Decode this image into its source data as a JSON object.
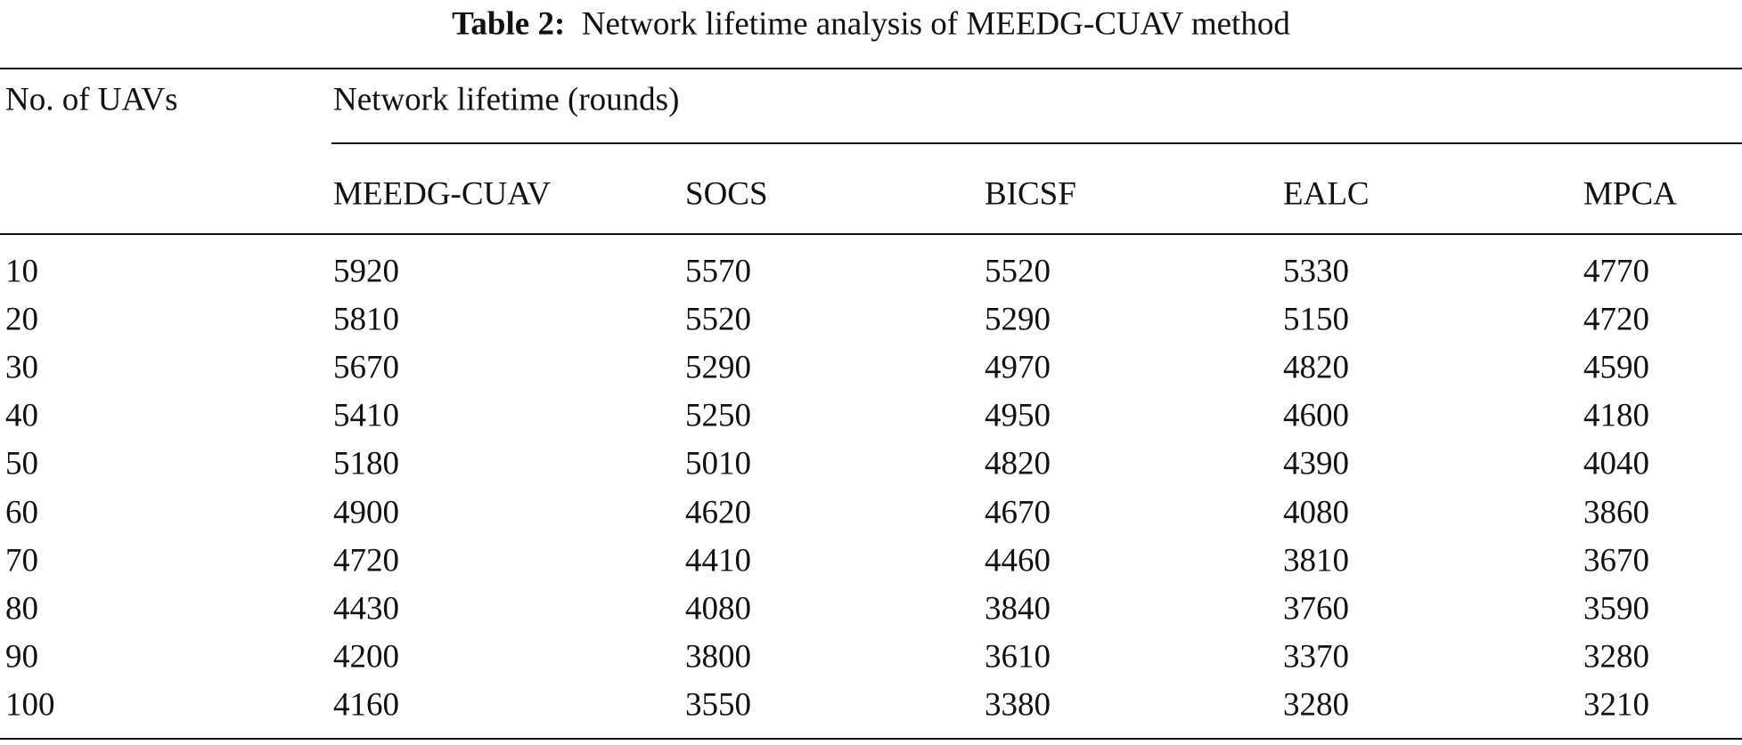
{
  "caption": {
    "label": "Table 2:",
    "text": "Network lifetime analysis of MEEDG-CUAV method"
  },
  "table": {
    "header": {
      "row_label": "No. of UAVs",
      "group": "Network lifetime (rounds)",
      "columns": [
        "MEEDG-CUAV",
        "SOCS",
        "BICSF",
        "EALC",
        "MPCA"
      ]
    },
    "rows": [
      [
        10,
        5920,
        5570,
        5520,
        5330,
        4770
      ],
      [
        20,
        5810,
        5520,
        5290,
        5150,
        4720
      ],
      [
        30,
        5670,
        5290,
        4970,
        4820,
        4590
      ],
      [
        40,
        5410,
        5250,
        4950,
        4600,
        4180
      ],
      [
        50,
        5180,
        5010,
        4820,
        4390,
        4040
      ],
      [
        60,
        4900,
        4620,
        4670,
        4080,
        3860
      ],
      [
        70,
        4720,
        4410,
        4460,
        3810,
        3670
      ],
      [
        80,
        4430,
        4080,
        3840,
        3760,
        3590
      ],
      [
        90,
        4200,
        3800,
        3610,
        3370,
        3280
      ],
      [
        100,
        4160,
        3550,
        3380,
        3280,
        3210
      ]
    ]
  }
}
